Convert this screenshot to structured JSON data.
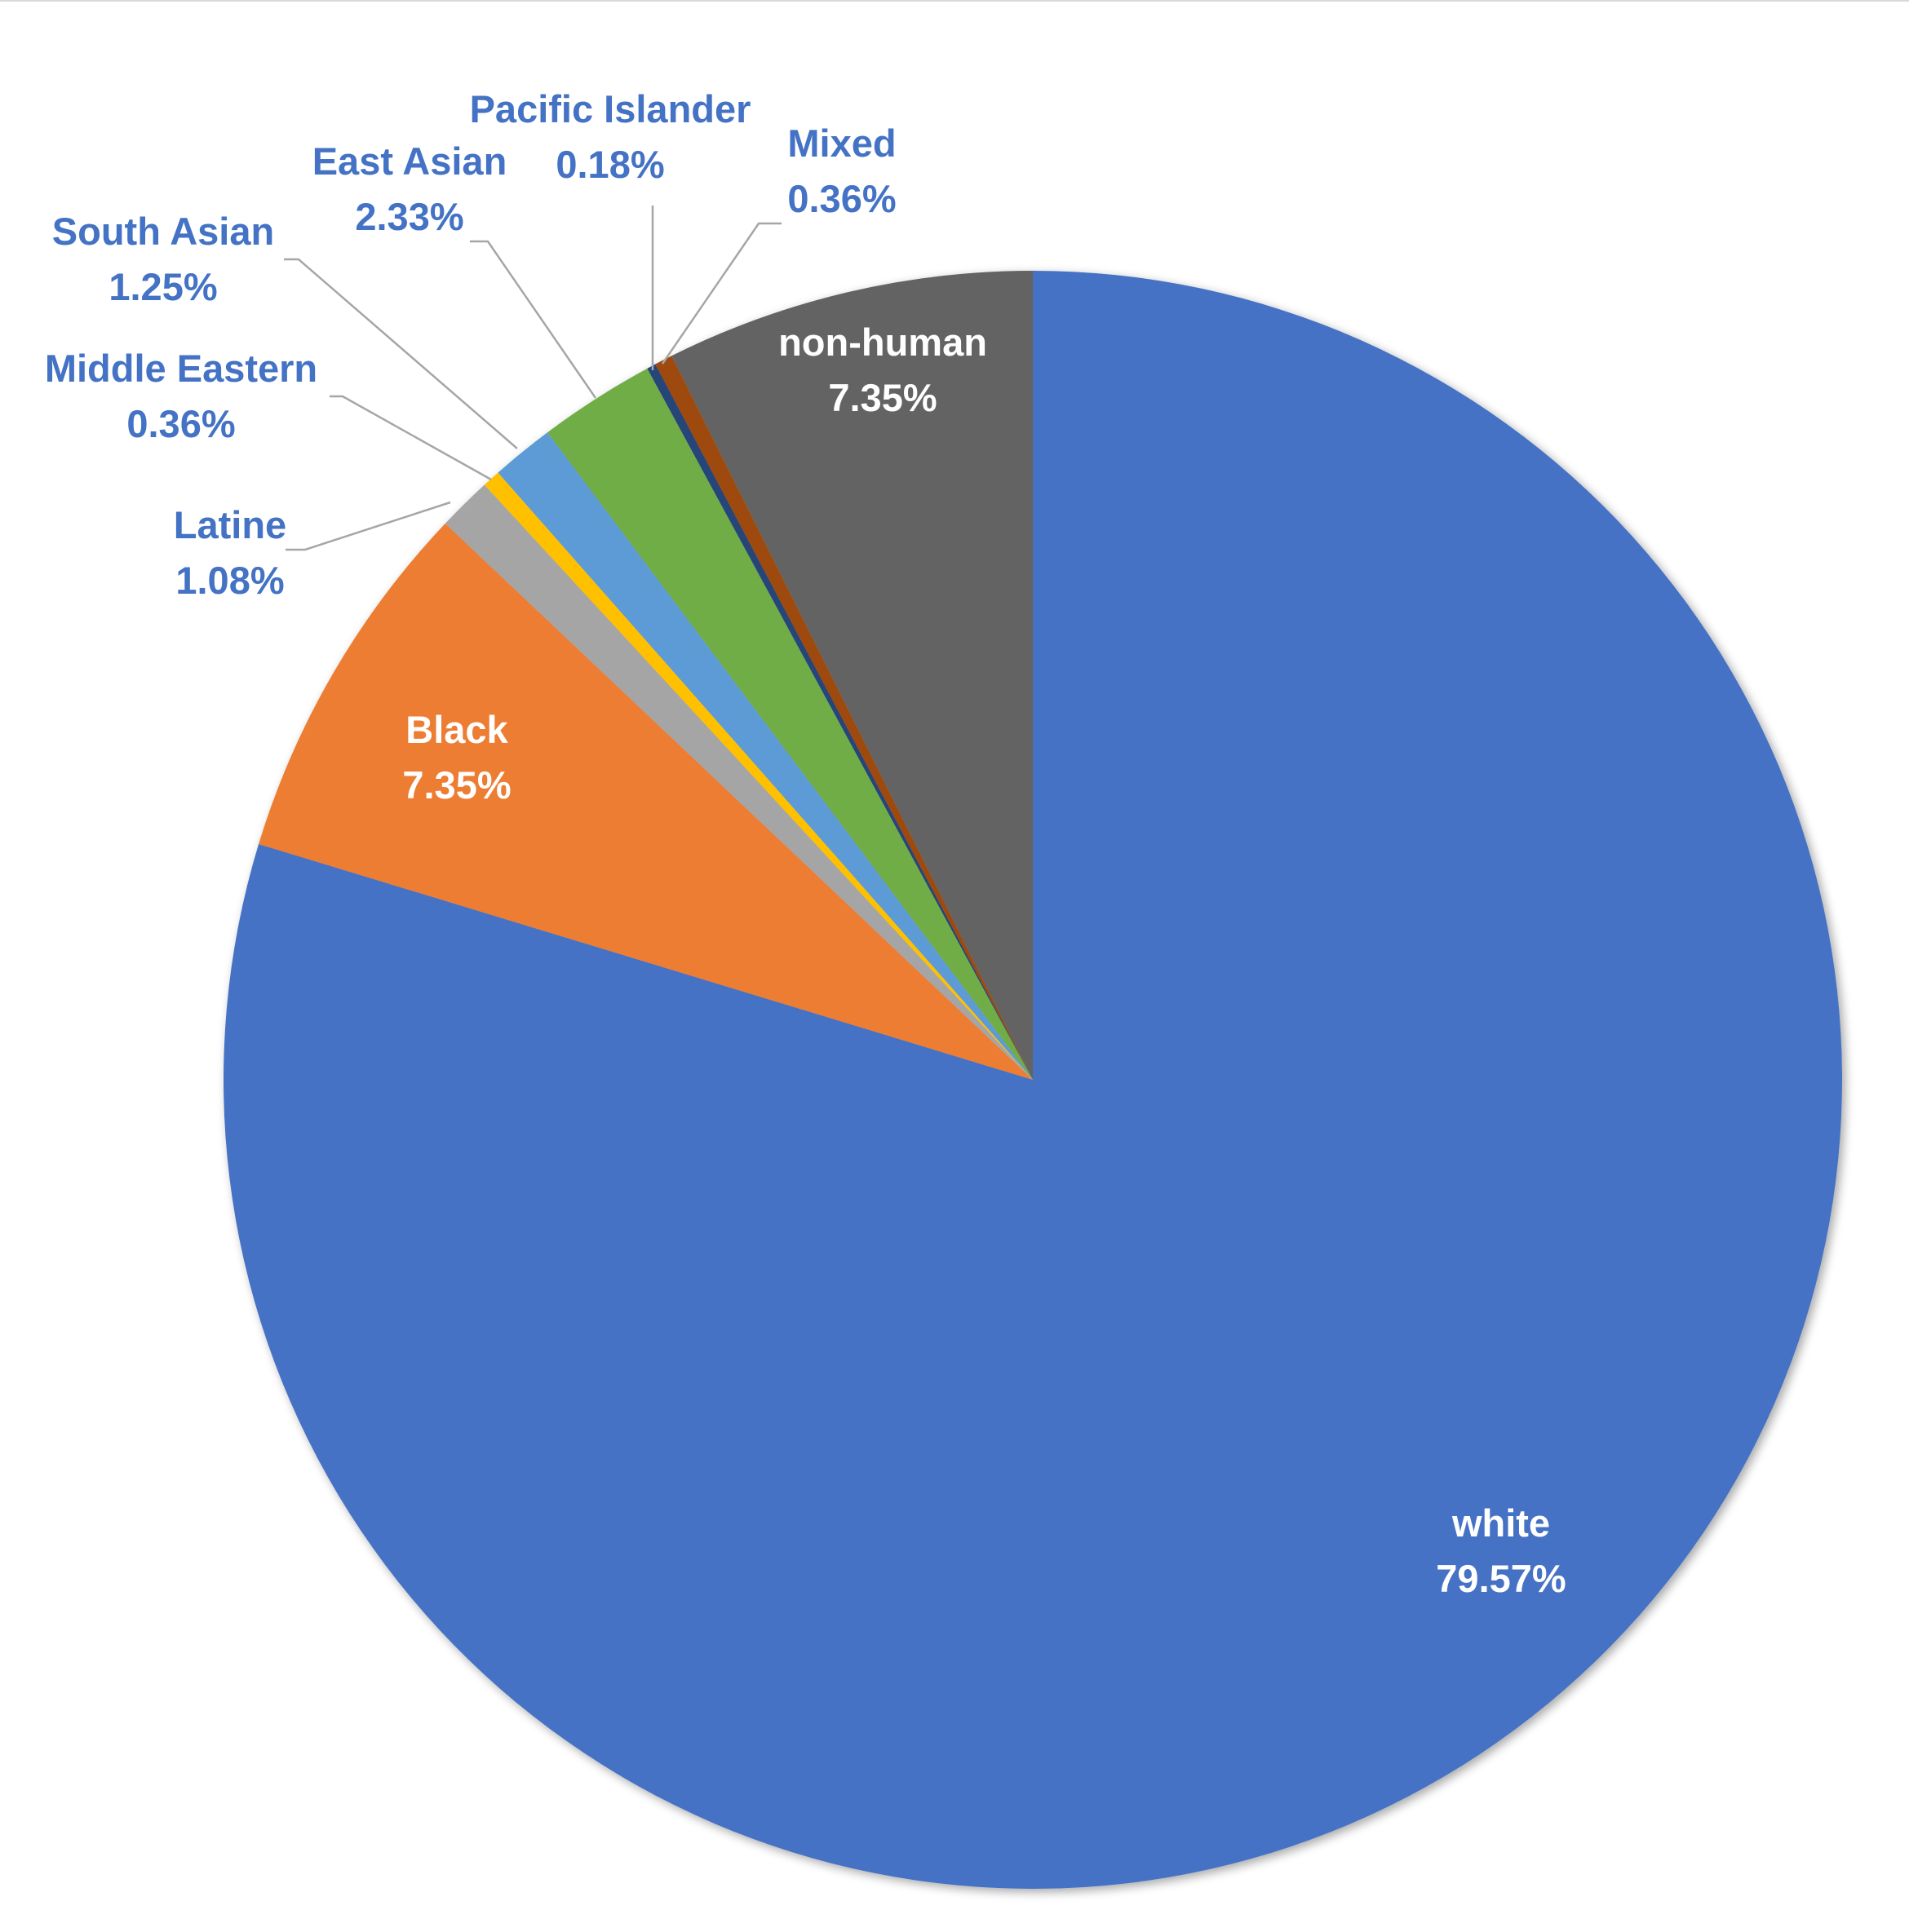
{
  "chart_data": {
    "type": "pie",
    "start_angle": "12 o'clock",
    "direction": "clockwise",
    "legend": "none",
    "slices": [
      {
        "name": "white",
        "label": "white",
        "value": 79.57,
        "value_label": "79.57%",
        "color": "#4472C4",
        "label_color": "#FFFFFF",
        "label_placement": "inside"
      },
      {
        "name": "Black",
        "label": "Black",
        "value": 7.35,
        "value_label": "7.35%",
        "color": "#ED7D31",
        "label_color": "#FFFFFF",
        "label_placement": "inside"
      },
      {
        "name": "Latine",
        "label": "Latine",
        "value": 1.08,
        "value_label": "1.08%",
        "color": "#A5A5A5",
        "label_color": "#4472C4",
        "label_placement": "outside"
      },
      {
        "name": "Middle Eastern",
        "label": "Middle Eastern",
        "value": 0.36,
        "value_label": "0.36%",
        "color": "#FFC000",
        "label_color": "#4472C4",
        "label_placement": "outside"
      },
      {
        "name": "South Asian",
        "label": "South Asian",
        "value": 1.25,
        "value_label": "1.25%",
        "color": "#5B9BD5",
        "label_color": "#4472C4",
        "label_placement": "outside"
      },
      {
        "name": "East Asian",
        "label": "East Asian",
        "value": 2.33,
        "value_label": "2.33%",
        "color": "#70AD47",
        "label_color": "#4472C4",
        "label_placement": "outside"
      },
      {
        "name": "Pacific Islander",
        "label": "Pacific Islander",
        "value": 0.18,
        "value_label": "0.18%",
        "color": "#264478",
        "label_color": "#4472C4",
        "label_placement": "outside"
      },
      {
        "name": "Mixed",
        "label": "Mixed",
        "value": 0.36,
        "value_label": "0.36%",
        "color": "#9E480E",
        "label_color": "#4472C4",
        "label_placement": "outside"
      },
      {
        "name": "non-human",
        "label": "non-human",
        "value": 7.35,
        "value_label": "7.35%",
        "color": "#636363",
        "label_color": "#FFFFFF",
        "label_placement": "inside"
      }
    ]
  }
}
